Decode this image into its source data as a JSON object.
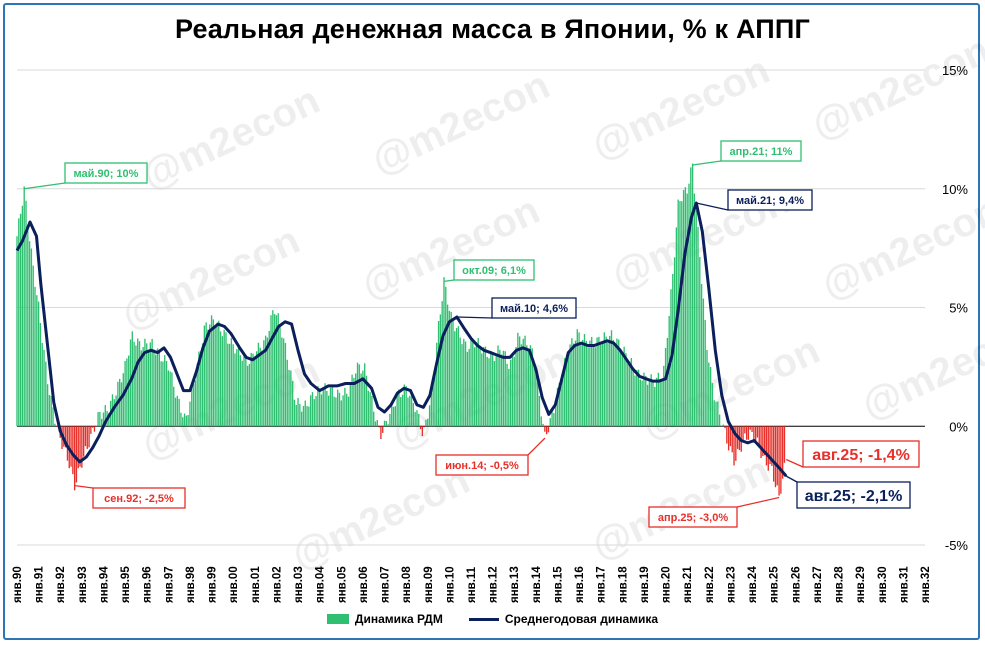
{
  "title": "Реальная денежная масса в Японии, % к АППГ",
  "watermark": "@m2econ",
  "colors": {
    "bar_pos": "#2fbf71",
    "bar_neg": "#e8302a",
    "line": "#0a1f5c",
    "frame": "#2e75b6",
    "grid": "#d9d9d9"
  },
  "legend": {
    "bars": "Динамика РДМ",
    "line": "Среднегодовая динамика"
  },
  "chart_data": {
    "type": "bar",
    "x_range": [
      "янв.90",
      "янв.32"
    ],
    "ylim": [
      -5,
      15
    ],
    "y_ticks": [
      "15%",
      "10%",
      "5%",
      "0%",
      "-5%"
    ],
    "x_ticks": [
      "янв.90",
      "янв.91",
      "янв.92",
      "янв.93",
      "янв.94",
      "янв.95",
      "янв.96",
      "янв.97",
      "янв.98",
      "янв.99",
      "янв.00",
      "янв.01",
      "янв.02",
      "янв.03",
      "янв.04",
      "янв.05",
      "янв.06",
      "янв.07",
      "янв.08",
      "янв.09",
      "янв.10",
      "янв.11",
      "янв.12",
      "янв.13",
      "янв.14",
      "янв.15",
      "янв.16",
      "янв.17",
      "янв.18",
      "янв.19",
      "янв.20",
      "янв.21",
      "янв.22",
      "янв.23",
      "янв.24",
      "янв.25",
      "янв.26",
      "янв.27",
      "янв.28",
      "янв.29",
      "янв.30",
      "янв.31",
      "янв.32"
    ],
    "series": [
      {
        "name": "Динамика РДМ",
        "kind": "bar",
        "points": [
          [
            1990.0,
            8
          ],
          [
            1990.33,
            10
          ],
          [
            1990.7,
            7
          ],
          [
            1991.0,
            5
          ],
          [
            1991.4,
            2
          ],
          [
            1991.7,
            0.5
          ],
          [
            1992.0,
            -0.5
          ],
          [
            1992.4,
            -1.5
          ],
          [
            1992.67,
            -2.5
          ],
          [
            1993.0,
            -1.5
          ],
          [
            1993.4,
            -0.5
          ],
          [
            1993.8,
            0.5
          ],
          [
            1994.2,
            0.7
          ],
          [
            1994.6,
            1.5
          ],
          [
            1995.0,
            2.5
          ],
          [
            1995.3,
            3.8
          ],
          [
            1995.7,
            3.4
          ],
          [
            1996.2,
            3.5
          ],
          [
            1996.6,
            3.0
          ],
          [
            1997.0,
            2.6
          ],
          [
            1997.4,
            1.2
          ],
          [
            1997.8,
            0.2
          ],
          [
            1998.3,
            2.4
          ],
          [
            1998.7,
            4.2
          ],
          [
            1999.1,
            4.5
          ],
          [
            1999.5,
            4.0
          ],
          [
            1999.9,
            3.5
          ],
          [
            2000.3,
            3.1
          ],
          [
            2000.7,
            2.7
          ],
          [
            2001.1,
            3.2
          ],
          [
            2001.5,
            3.6
          ],
          [
            2001.9,
            5.0
          ],
          [
            2002.2,
            4.2
          ],
          [
            2002.6,
            2.5
          ],
          [
            2002.9,
            1.0
          ],
          [
            2003.3,
            0.8
          ],
          [
            2003.7,
            1.3
          ],
          [
            2004.1,
            1.6
          ],
          [
            2004.5,
            1.5
          ],
          [
            2004.9,
            1.3
          ],
          [
            2005.3,
            1.4
          ],
          [
            2005.7,
            2.5
          ],
          [
            2006.1,
            2.4
          ],
          [
            2006.4,
            1.1
          ],
          [
            2006.8,
            -0.4
          ],
          [
            2007.2,
            0.4
          ],
          [
            2007.6,
            1.3
          ],
          [
            2008.0,
            1.6
          ],
          [
            2008.4,
            0.9
          ],
          [
            2008.8,
            -0.4
          ],
          [
            2009.2,
            1.5
          ],
          [
            2009.5,
            4.2
          ],
          [
            2009.75,
            6.1
          ],
          [
            2010.1,
            4.5
          ],
          [
            2010.4,
            4.0
          ],
          [
            2010.8,
            3.3
          ],
          [
            2011.2,
            3.6
          ],
          [
            2011.6,
            3.2
          ],
          [
            2012.0,
            2.9
          ],
          [
            2012.4,
            3.3
          ],
          [
            2012.8,
            2.5
          ],
          [
            2013.2,
            3.8
          ],
          [
            2013.6,
            3.5
          ],
          [
            2013.9,
            3.0
          ],
          [
            2014.2,
            1.0
          ],
          [
            2014.42,
            -0.5
          ],
          [
            2014.8,
            0.6
          ],
          [
            2015.1,
            1.8
          ],
          [
            2015.5,
            3.2
          ],
          [
            2015.9,
            3.9
          ],
          [
            2016.3,
            3.6
          ],
          [
            2016.7,
            3.5
          ],
          [
            2017.1,
            3.7
          ],
          [
            2017.5,
            3.8
          ],
          [
            2017.9,
            3.4
          ],
          [
            2018.3,
            2.8
          ],
          [
            2018.7,
            2.2
          ],
          [
            2019.1,
            2.0
          ],
          [
            2019.5,
            1.9
          ],
          [
            2019.9,
            2.2
          ],
          [
            2020.3,
            6.0
          ],
          [
            2020.6,
            9.5
          ],
          [
            2021.0,
            10.0
          ],
          [
            2021.25,
            11.0
          ],
          [
            2021.6,
            7.0
          ],
          [
            2021.9,
            3.5
          ],
          [
            2022.2,
            1.5
          ],
          [
            2022.6,
            0.2
          ],
          [
            2022.9,
            -0.8
          ],
          [
            2023.2,
            -1.5
          ],
          [
            2023.6,
            -0.6
          ],
          [
            2023.9,
            -0.3
          ],
          [
            2024.2,
            -0.6
          ],
          [
            2024.6,
            -1.5
          ],
          [
            2024.9,
            -1.8
          ],
          [
            2025.25,
            -3.0
          ],
          [
            2025.58,
            -1.4
          ]
        ]
      },
      {
        "name": "Среднегодовая динамика",
        "kind": "line",
        "points": [
          [
            1990.0,
            7.4
          ],
          [
            1990.25,
            7.8
          ],
          [
            1990.6,
            8.6
          ],
          [
            1990.9,
            8.0
          ],
          [
            1991.1,
            6.0
          ],
          [
            1991.4,
            3.5
          ],
          [
            1991.7,
            1.0
          ],
          [
            1992.0,
            -0.2
          ],
          [
            1992.3,
            -0.8
          ],
          [
            1992.6,
            -1.2
          ],
          [
            1992.9,
            -1.5
          ],
          [
            1993.2,
            -1.3
          ],
          [
            1993.5,
            -0.9
          ],
          [
            1993.8,
            -0.4
          ],
          [
            1994.1,
            0.2
          ],
          [
            1994.5,
            0.8
          ],
          [
            1994.9,
            1.3
          ],
          [
            1995.3,
            2.0
          ],
          [
            1995.6,
            2.7
          ],
          [
            1995.9,
            3.1
          ],
          [
            1996.2,
            3.2
          ],
          [
            1996.5,
            3.1
          ],
          [
            1996.8,
            3.3
          ],
          [
            1997.1,
            2.9
          ],
          [
            1997.4,
            2.2
          ],
          [
            1997.7,
            1.5
          ],
          [
            1998.0,
            1.5
          ],
          [
            1998.3,
            2.3
          ],
          [
            1998.6,
            3.3
          ],
          [
            1998.9,
            4.0
          ],
          [
            1999.3,
            4.3
          ],
          [
            1999.6,
            4.2
          ],
          [
            1999.9,
            3.9
          ],
          [
            2000.3,
            3.3
          ],
          [
            2000.6,
            2.9
          ],
          [
            2000.9,
            2.8
          ],
          [
            2001.2,
            3.0
          ],
          [
            2001.5,
            3.2
          ],
          [
            2001.8,
            3.7
          ],
          [
            2002.1,
            4.2
          ],
          [
            2002.4,
            4.4
          ],
          [
            2002.7,
            4.3
          ],
          [
            2003.0,
            3.2
          ],
          [
            2003.3,
            2.2
          ],
          [
            2003.6,
            1.8
          ],
          [
            2004.0,
            1.5
          ],
          [
            2004.4,
            1.7
          ],
          [
            2004.8,
            1.7
          ],
          [
            2005.2,
            1.8
          ],
          [
            2005.6,
            1.8
          ],
          [
            2006.0,
            2.0
          ],
          [
            2006.4,
            1.6
          ],
          [
            2006.7,
            0.8
          ],
          [
            2007.0,
            0.6
          ],
          [
            2007.3,
            0.9
          ],
          [
            2007.6,
            1.4
          ],
          [
            2007.9,
            1.6
          ],
          [
            2008.2,
            1.5
          ],
          [
            2008.5,
            0.9
          ],
          [
            2008.8,
            0.8
          ],
          [
            2009.1,
            1.3
          ],
          [
            2009.4,
            2.6
          ],
          [
            2009.7,
            3.8
          ],
          [
            2010.0,
            4.4
          ],
          [
            2010.35,
            4.6
          ],
          [
            2010.7,
            4.1
          ],
          [
            2011.0,
            3.7
          ],
          [
            2011.3,
            3.4
          ],
          [
            2011.6,
            3.2
          ],
          [
            2011.9,
            3.1
          ],
          [
            2012.2,
            3.0
          ],
          [
            2012.5,
            2.9
          ],
          [
            2012.8,
            2.9
          ],
          [
            2013.1,
            3.2
          ],
          [
            2013.4,
            3.3
          ],
          [
            2013.7,
            3.2
          ],
          [
            2014.0,
            2.4
          ],
          [
            2014.3,
            1.2
          ],
          [
            2014.6,
            0.5
          ],
          [
            2014.9,
            0.9
          ],
          [
            2015.2,
            2.0
          ],
          [
            2015.5,
            3.1
          ],
          [
            2015.8,
            3.4
          ],
          [
            2016.1,
            3.5
          ],
          [
            2016.4,
            3.4
          ],
          [
            2016.7,
            3.4
          ],
          [
            2017.0,
            3.5
          ],
          [
            2017.3,
            3.6
          ],
          [
            2017.6,
            3.5
          ],
          [
            2017.9,
            3.2
          ],
          [
            2018.2,
            2.8
          ],
          [
            2018.5,
            2.4
          ],
          [
            2018.8,
            2.1
          ],
          [
            2019.1,
            2.0
          ],
          [
            2019.4,
            1.9
          ],
          [
            2019.7,
            1.9
          ],
          [
            2020.0,
            2.0
          ],
          [
            2020.3,
            3.0
          ],
          [
            2020.6,
            5.0
          ],
          [
            2020.9,
            7.3
          ],
          [
            2021.2,
            8.8
          ],
          [
            2021.42,
            9.4
          ],
          [
            2021.7,
            8.2
          ],
          [
            2022.0,
            5.8
          ],
          [
            2022.3,
            3.2
          ],
          [
            2022.6,
            1.3
          ],
          [
            2022.9,
            0.2
          ],
          [
            2023.2,
            -0.3
          ],
          [
            2023.5,
            -0.6
          ],
          [
            2023.8,
            -0.7
          ],
          [
            2024.1,
            -0.6
          ],
          [
            2024.4,
            -0.9
          ],
          [
            2024.7,
            -1.2
          ],
          [
            2025.0,
            -1.5
          ],
          [
            2025.3,
            -1.8
          ],
          [
            2025.58,
            -2.1
          ]
        ]
      }
    ],
    "annotations": [
      {
        "text": "май.90; 10%",
        "x": 1990.33,
        "y": 10,
        "series": "Динамика РДМ"
      },
      {
        "text": "сен.92; -2,5%",
        "x": 1992.67,
        "y": -2.5,
        "series": "Динамика РДМ"
      },
      {
        "text": "окт.09; 6,1%",
        "x": 2009.75,
        "y": 6.1,
        "series": "Динамика РДМ"
      },
      {
        "text": "май.10; 4,6%",
        "x": 2010.35,
        "y": 4.6,
        "series": "Среднегодовая динамика"
      },
      {
        "text": "июн.14; -0,5%",
        "x": 2014.42,
        "y": -0.5,
        "series": "Динамика РДМ"
      },
      {
        "text": "апр.21; 11%",
        "x": 2021.25,
        "y": 11,
        "series": "Динамика РДМ"
      },
      {
        "text": "май.21; 9,4%",
        "x": 2021.42,
        "y": 9.4,
        "series": "Среднегодовая динамика"
      },
      {
        "text": "апр.25; -3,0%",
        "x": 2025.25,
        "y": -3.0,
        "series": "Динамика РДМ"
      },
      {
        "text": "авг.25; -1,4%",
        "x": 2025.58,
        "y": -1.4,
        "series": "Динамика РДМ"
      },
      {
        "text": "авг.25; -2,1%",
        "x": 2025.58,
        "y": -2.1,
        "series": "Среднегодовая динамика"
      }
    ],
    "grid": true,
    "legend_position": "bottom"
  }
}
